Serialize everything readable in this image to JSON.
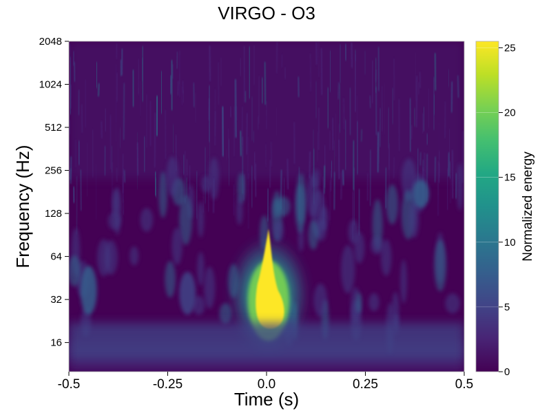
{
  "chart_data": {
    "type": "heatmap",
    "title": "VIRGO - O3",
    "xlabel": "Time (s)",
    "ylabel": "Frequency (Hz)",
    "xlim": [
      -0.5,
      0.5
    ],
    "ylim": [
      10,
      2048
    ],
    "yscale": "log2",
    "x_ticks": [
      -0.5,
      -0.25,
      0.0,
      0.25,
      0.5
    ],
    "x_tick_labels": [
      "-0.5",
      "-0.25",
      "0.0",
      "0.25",
      "0.5"
    ],
    "y_ticks": [
      16,
      32,
      64,
      128,
      256,
      512,
      1024,
      2048
    ],
    "y_tick_labels": [
      "16",
      "32",
      "64",
      "128",
      "256",
      "512",
      "1024",
      "2048"
    ],
    "colormap": "viridis",
    "colorbar": {
      "label": "Normalized energy",
      "range": [
        0,
        25.5
      ],
      "ticks": [
        0,
        5,
        10,
        15,
        20,
        25
      ],
      "tick_labels": [
        "0",
        "5",
        "10",
        "15",
        "20",
        "25"
      ]
    },
    "features": [
      {
        "shape": "blob",
        "t": 0.005,
        "f_min": 20,
        "f_max": 100,
        "energy": 25.5
      },
      {
        "shape": "blob",
        "t": -0.45,
        "f_min": 25,
        "f_max": 55,
        "energy": 7
      },
      {
        "shape": "blob",
        "t": -0.2,
        "f_min": 25,
        "f_max": 50,
        "energy": 5
      },
      {
        "shape": "band",
        "t_min": -0.5,
        "t_max": 0.5,
        "f_min": 12,
        "f_max": 22,
        "energy": 4
      },
      {
        "shape": "blob",
        "t": 0.39,
        "f_min": 140,
        "f_max": 220,
        "energy": 8
      }
    ]
  }
}
